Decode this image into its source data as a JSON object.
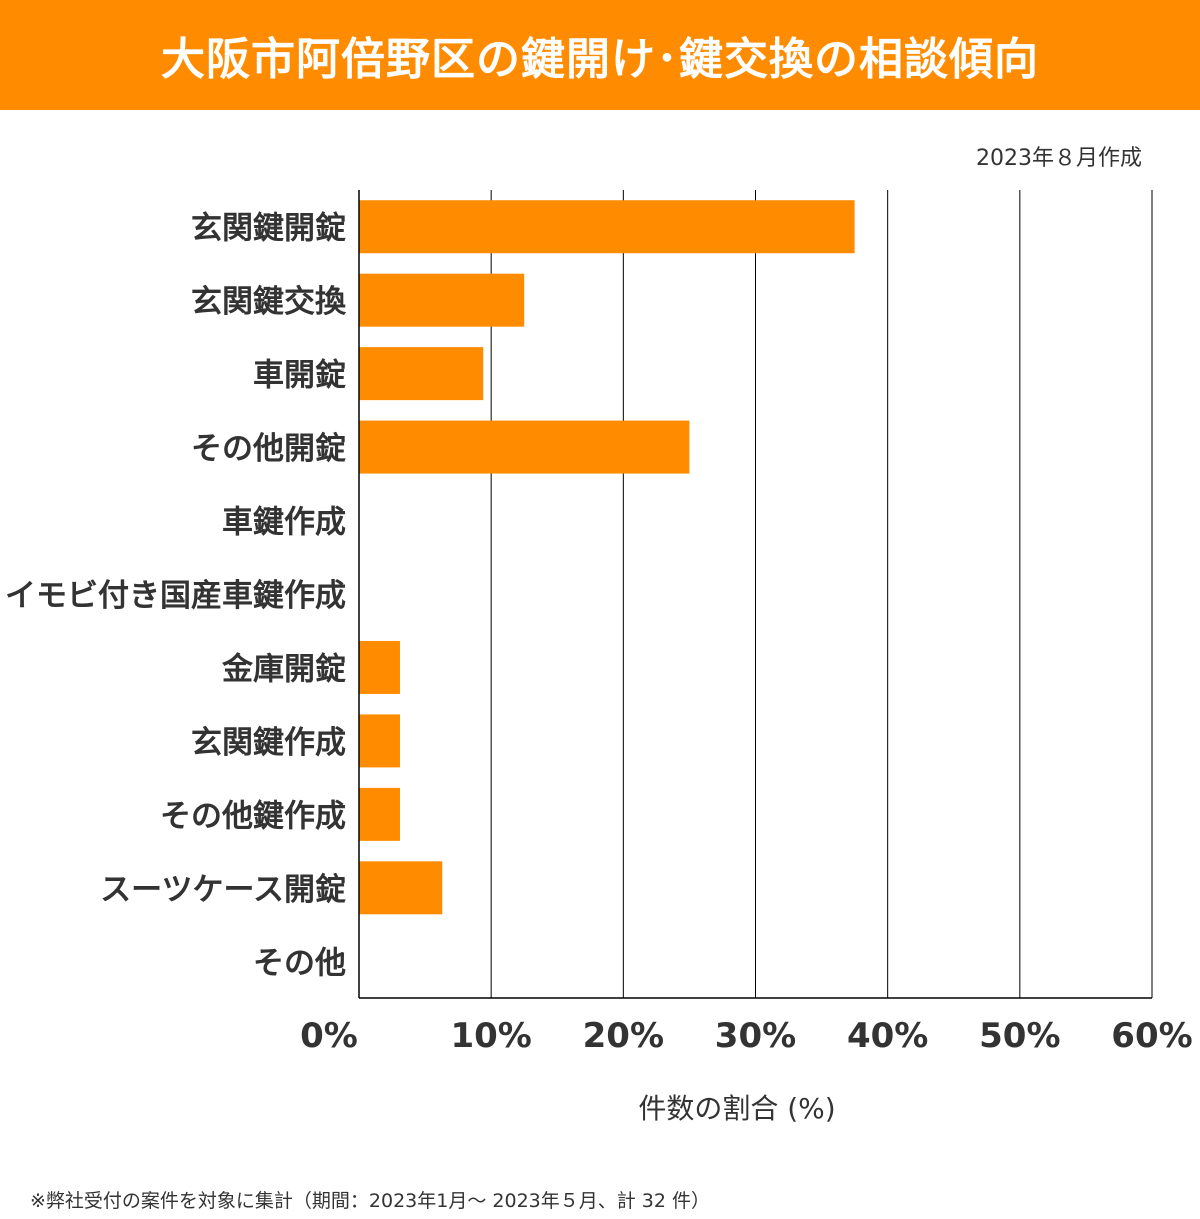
{
  "title": "大阪市阿倍野区の鍵開け･鍵交換の相談傾向",
  "date_note": "2023年８月作成",
  "footnote": "※弊社受付の案件を対象に集計（期間：2023年1月～ 2023年５月、計 32 件）",
  "colors": {
    "bar": "#FF8C00",
    "title_bg": "#FF8C00"
  },
  "chart_data": {
    "type": "bar",
    "orientation": "horizontal",
    "title": "大阪市阿倍野区の鍵開け･鍵交換の相談傾向",
    "xlabel": "件数の割合 (%)",
    "ylabel": "",
    "xlim": [
      0,
      60
    ],
    "grid": true,
    "categories": [
      "玄関鍵開錠",
      "玄関鍵交換",
      "車開錠",
      "その他開錠",
      "車鍵作成",
      "イモビ付き国産車鍵作成",
      "金庫開錠",
      "玄関鍵作成",
      "その他鍵作成",
      "スーツケース開錠",
      "その他"
    ],
    "values": [
      37.5,
      12.5,
      9.4,
      25.0,
      0,
      0,
      3.1,
      3.1,
      3.1,
      6.3,
      0
    ],
    "ticks": [
      0,
      10,
      20,
      30,
      40,
      50,
      60
    ],
    "tick_labels": [
      "0%",
      "10%",
      "20%",
      "30%",
      "40%",
      "50%",
      "60%"
    ]
  }
}
